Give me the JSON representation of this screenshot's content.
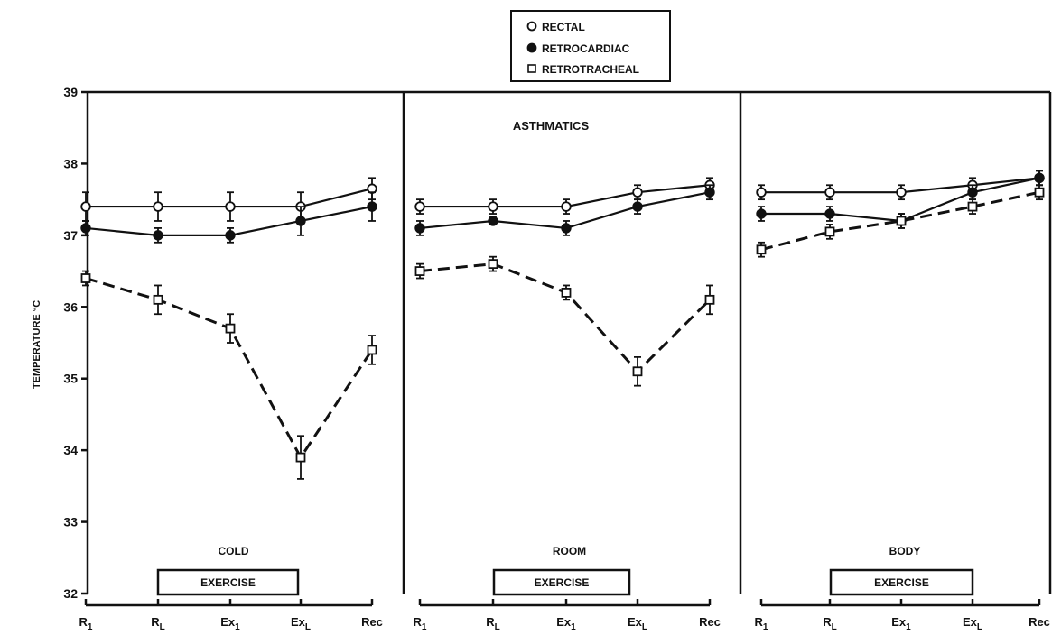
{
  "chart_data": {
    "type": "line",
    "title": "ASTHMATICS",
    "ylabel": "TEMPERATURE °C",
    "ylim": [
      32,
      39
    ],
    "yticks": [
      32,
      33,
      34,
      35,
      36,
      37,
      38,
      39
    ],
    "x_ticks": [
      {
        "base": "R",
        "sub": "1"
      },
      {
        "base": "R",
        "sub": "L"
      },
      {
        "base": "Ex",
        "sub": "1"
      },
      {
        "base": "Ex",
        "sub": "L"
      },
      {
        "base": "Rec",
        "sub": ""
      }
    ],
    "legend": {
      "placement": "top-center",
      "entries": [
        "RECTAL",
        "RETROCARDIAC",
        "RETROTRACHEAL"
      ]
    },
    "exercise_label": "EXERCISE",
    "colors": {
      "ink": "#111111",
      "background": "#ffffff"
    },
    "panels": [
      {
        "condition": "COLD",
        "series": [
          {
            "name": "RECTAL",
            "marker": "open-circle",
            "line": "solid",
            "values": [
              37.4,
              37.4,
              37.4,
              37.4,
              37.65
            ],
            "errors": [
              0.2,
              0.2,
              0.2,
              0.2,
              0.15
            ]
          },
          {
            "name": "RETROCARDIAC",
            "marker": "filled-circle",
            "line": "solid",
            "values": [
              37.1,
              37.0,
              37.0,
              37.2,
              37.4
            ],
            "errors": [
              0.1,
              0.1,
              0.1,
              0.2,
              0.2
            ]
          },
          {
            "name": "RETROTRACHEAL",
            "marker": "open-square",
            "line": "dashed",
            "values": [
              36.4,
              36.1,
              35.7,
              33.9,
              35.4
            ],
            "errors": [
              0.1,
              0.2,
              0.2,
              0.3,
              0.2
            ]
          }
        ]
      },
      {
        "condition": "ROOM",
        "series": [
          {
            "name": "RECTAL",
            "marker": "open-circle",
            "line": "solid",
            "values": [
              37.4,
              37.4,
              37.4,
              37.6,
              37.7
            ],
            "errors": [
              0.1,
              0.1,
              0.1,
              0.1,
              0.1
            ]
          },
          {
            "name": "RETROCARDIAC",
            "marker": "filled-circle",
            "line": "solid",
            "values": [
              37.1,
              37.2,
              37.1,
              37.4,
              37.6
            ],
            "errors": [
              0.1,
              0.05,
              0.1,
              0.1,
              0.1
            ]
          },
          {
            "name": "RETROTRACHEAL",
            "marker": "open-square",
            "line": "dashed",
            "values": [
              36.5,
              36.6,
              36.2,
              35.1,
              36.1
            ],
            "errors": [
              0.1,
              0.1,
              0.1,
              0.2,
              0.2
            ]
          }
        ]
      },
      {
        "condition": "BODY",
        "series": [
          {
            "name": "RECTAL",
            "marker": "open-circle",
            "line": "solid",
            "values": [
              37.6,
              37.6,
              37.6,
              37.7,
              37.8
            ],
            "errors": [
              0.1,
              0.1,
              0.1,
              0.1,
              0.1
            ]
          },
          {
            "name": "RETROCARDIAC",
            "marker": "filled-circle",
            "line": "solid",
            "values": [
              37.3,
              37.3,
              37.2,
              37.6,
              37.8
            ],
            "errors": [
              0.1,
              0.1,
              0.1,
              0.1,
              0.1
            ]
          },
          {
            "name": "RETROTRACHEAL",
            "marker": "open-square",
            "line": "dashed",
            "values": [
              36.8,
              37.05,
              37.2,
              37.4,
              37.6
            ],
            "errors": [
              0.1,
              0.1,
              0.1,
              0.1,
              0.1
            ]
          }
        ]
      }
    ]
  }
}
